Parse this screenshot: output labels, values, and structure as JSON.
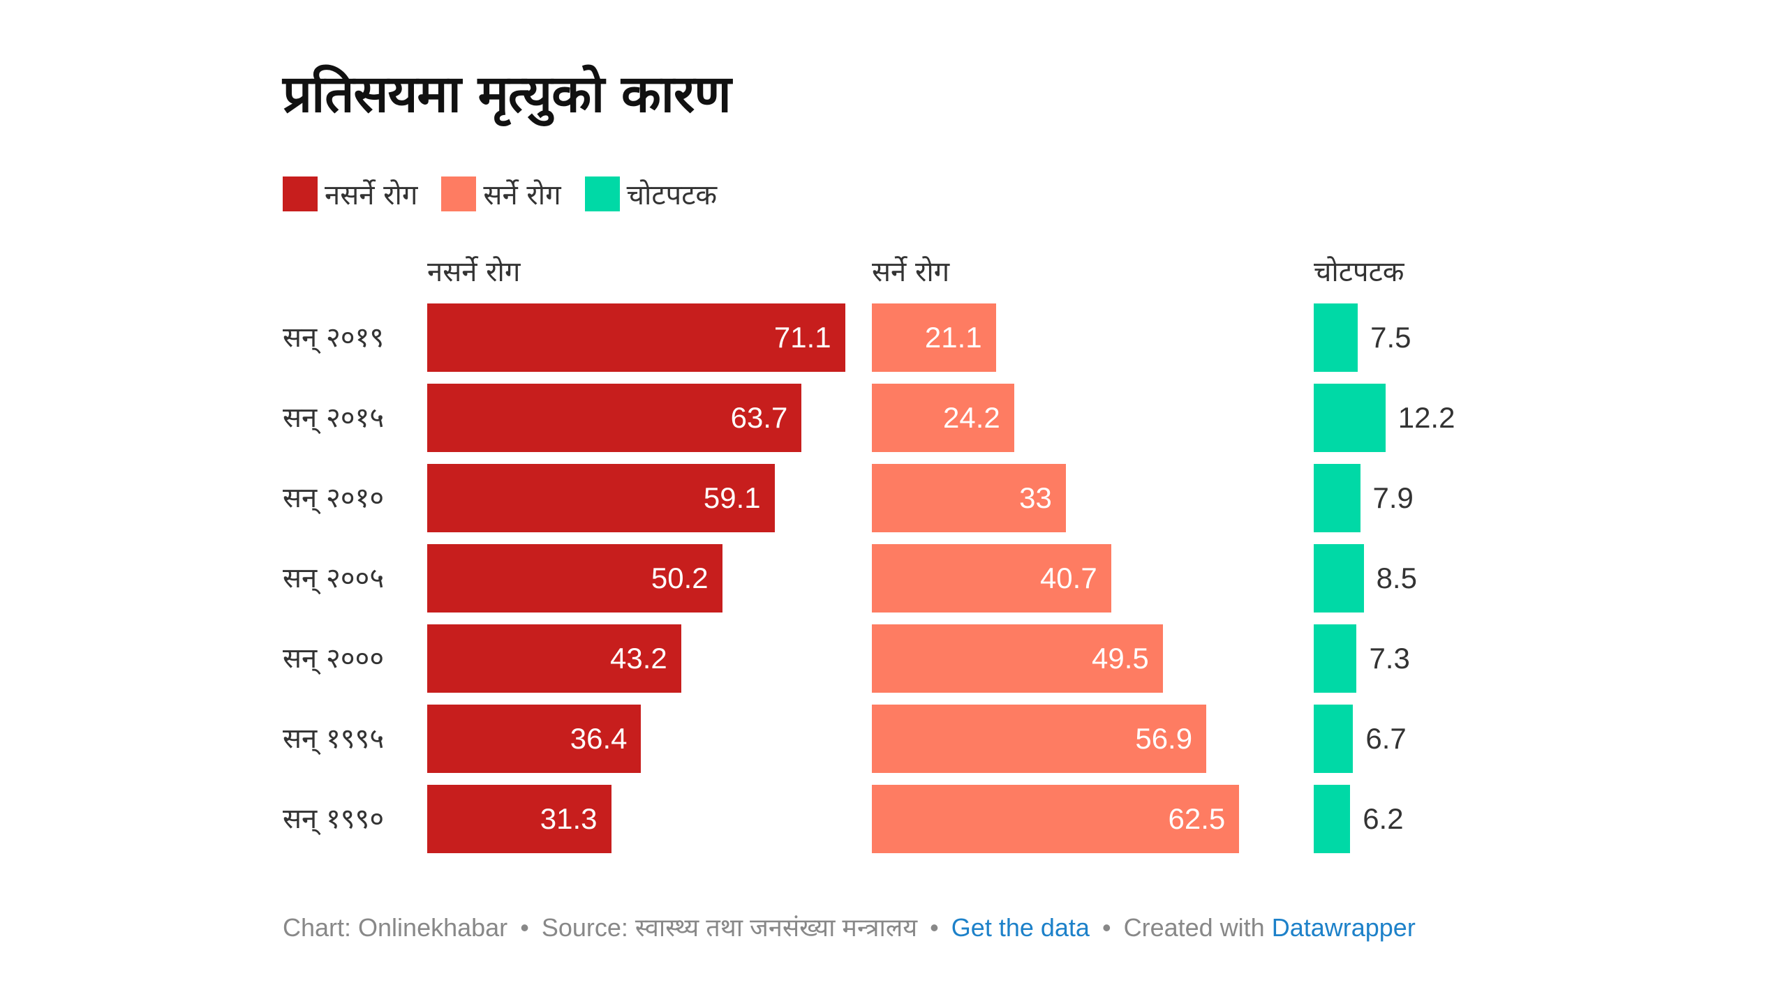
{
  "title": "प्रतिसयमा मृत्युको कारण",
  "legend": [
    {
      "label": "नसर्ने रोग",
      "color": "#c71e1d"
    },
    {
      "label": "सर्ने रोग",
      "color": "#fe7c62"
    },
    {
      "label": "चोटपटक",
      "color": "#00d9a6"
    }
  ],
  "chart_data": {
    "type": "bar",
    "orientation": "horizontal",
    "layout": "split-columns",
    "title": "प्रतिसयमा मृत्युको कारण",
    "categories": [
      "सन् २०१९",
      "सन् २०१५",
      "सन् २०१०",
      "सन् २००५",
      "सन् २०००",
      "सन् १९९५",
      "सन् १९९०"
    ],
    "series": [
      {
        "name": "नसर्ने रोग",
        "color": "#c71e1d",
        "values": [
          71.1,
          63.7,
          59.1,
          50.2,
          43.2,
          36.4,
          31.3
        ],
        "label_position": "inside"
      },
      {
        "name": "सर्ने रोग",
        "color": "#fe7c62",
        "values": [
          21.1,
          24.2,
          33,
          40.7,
          49.5,
          56.9,
          62.5
        ],
        "label_position": "inside"
      },
      {
        "name": "चोटपटक",
        "color": "#00d9a6",
        "values": [
          7.5,
          12.2,
          7.9,
          8.5,
          7.3,
          6.7,
          6.2
        ],
        "label_position": "outside"
      }
    ],
    "xlabel": "",
    "ylabel": "",
    "xlim": [
      0,
      71.1
    ],
    "grid": false,
    "legend_position": "top-left"
  },
  "footer": {
    "chart_credit": "Chart: Onlinekhabar",
    "separator": "•",
    "source": "Source: स्वास्थ्य तथा जनसंख्या मन्त्रालय",
    "get_data": "Get the data",
    "created_with": "Created with",
    "datawrapper": "Datawrapper"
  }
}
